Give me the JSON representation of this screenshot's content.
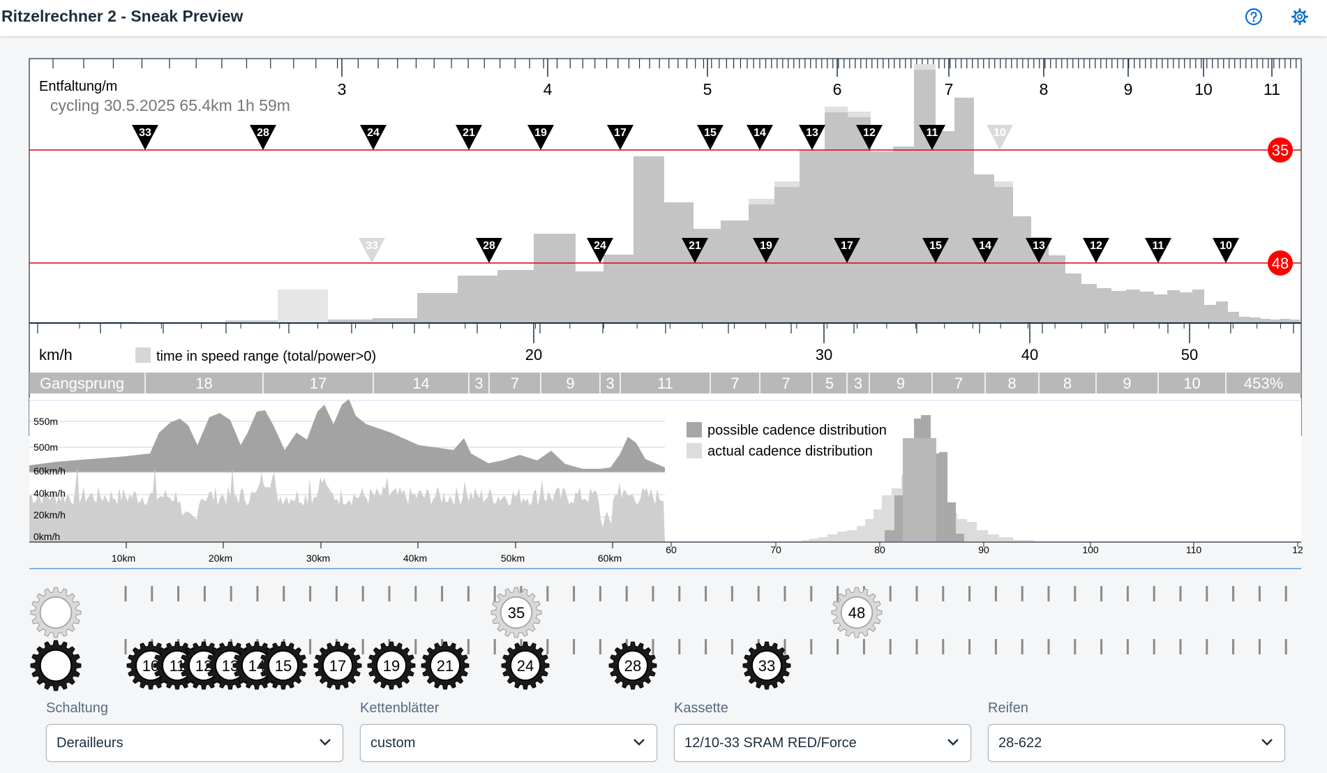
{
  "app": {
    "title": "Ritzelrechner 2 - Sneak Preview"
  },
  "header_icons": {
    "help": "help-icon",
    "settings": "gear-icon"
  },
  "colors": {
    "accent": "#0a6ed1",
    "chainring_marker": "#ff0000",
    "bar": "#c4c4c4",
    "bar_light": "#dddddd"
  },
  "top_chart": {
    "label": "Entfaltung/m",
    "ride_info": "cycling 30.5.2025 65.4km 1h 59m",
    "axis_labels": [
      "3",
      "4",
      "5",
      "6",
      "7",
      "8",
      "9",
      "10",
      "11"
    ],
    "speed_label": "km/h",
    "legend_text": "time in speed range (total/power>0)",
    "speed_ticks": [
      "20",
      "30",
      "40",
      "50"
    ],
    "chainrings": [
      "35",
      "48"
    ],
    "markers_35": [
      "33",
      "28",
      "24",
      "21",
      "19",
      "17",
      "15",
      "14",
      "13",
      "12",
      "11",
      "10"
    ],
    "markers_48": [
      "33",
      "28",
      "24",
      "21",
      "19",
      "17",
      "15",
      "14",
      "13",
      "12",
      "11",
      "10"
    ],
    "gangsprung_label": "Gangsprung",
    "gangsprung": [
      "18",
      "17",
      "14",
      "3",
      "7",
      "9",
      "3",
      "11",
      "7",
      "7",
      "5",
      "3",
      "9",
      "7",
      "8",
      "8",
      "9",
      "10",
      "453%"
    ]
  },
  "lower_chart": {
    "elevation_labels": [
      "550m",
      "500m"
    ],
    "speed_labels": [
      "60km/h",
      "40km/h",
      "20km/h",
      "0km/h"
    ],
    "distance_labels": [
      "10km",
      "20km",
      "30km",
      "40km",
      "50km",
      "60km"
    ],
    "legend": [
      "possible cadence distribution",
      "actual cadence distribution"
    ],
    "cadence_ticks": [
      "60",
      "70",
      "80",
      "90",
      "100",
      "110",
      "12"
    ]
  },
  "gears": {
    "chainrings": [
      "35",
      "48"
    ],
    "cassette": [
      "10",
      "11",
      "12",
      "13",
      "14",
      "15",
      "17",
      "19",
      "21",
      "24",
      "28",
      "33"
    ]
  },
  "controls": [
    {
      "label": "Schaltung",
      "value": "Derailleurs"
    },
    {
      "label": "Kettenblätter",
      "value": "custom"
    },
    {
      "label": "Kassette",
      "value": "12/10-33 SRAM RED/Force"
    },
    {
      "label": "Reifen",
      "value": "28-622"
    }
  ]
}
